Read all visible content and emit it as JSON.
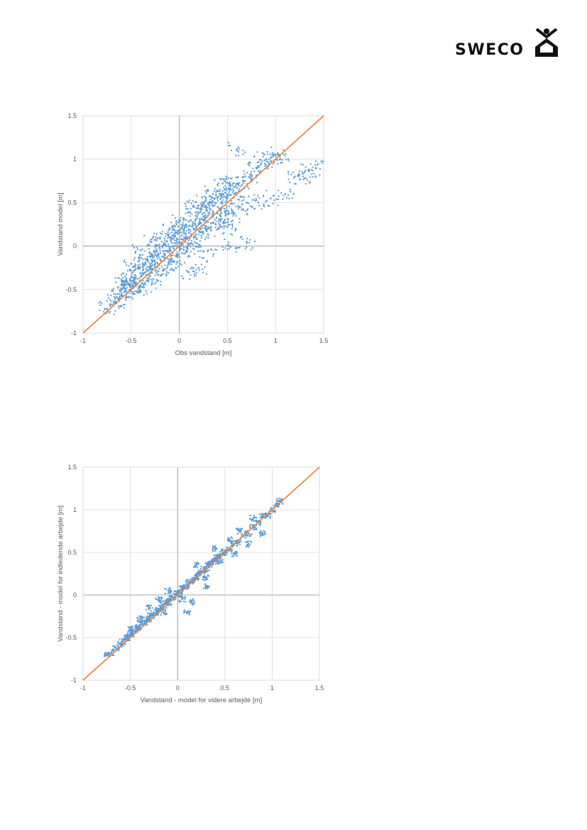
{
  "logo": {
    "text": "SWECO",
    "icon": "sweco-figure-icon"
  },
  "colors": {
    "points": "#5b9bd5",
    "line": "#ed7d31",
    "grid": "#d9d9d9",
    "zero": "#a6a6a6"
  },
  "chart_data": [
    {
      "type": "scatter",
      "xlabel": "Obs vandstand [m]",
      "ylabel": "Vandstand model [m]",
      "xlim": [
        -1,
        1.5
      ],
      "ylim": [
        -1,
        1.5
      ],
      "xticks": [
        "-1",
        "-0.5",
        "0",
        "0.5",
        "1",
        "1.5"
      ],
      "yticks": [
        "-1",
        "-0.5",
        "0",
        "0.5",
        "1",
        "1.5"
      ],
      "grid": true,
      "reference_line": {
        "from": [
          -1,
          -1
        ],
        "to": [
          1.5,
          1.5
        ]
      },
      "points": [
        [
          -0.75,
          -0.72
        ],
        [
          -0.7,
          -0.67
        ],
        [
          -0.66,
          -0.64
        ],
        [
          -0.62,
          -0.6
        ],
        [
          -0.6,
          -0.55
        ],
        [
          -0.58,
          -0.48
        ],
        [
          -0.55,
          -0.52
        ],
        [
          -0.55,
          -0.4
        ],
        [
          -0.52,
          -0.45
        ],
        [
          -0.5,
          -0.5
        ],
        [
          -0.5,
          -0.36
        ],
        [
          -0.48,
          -0.3
        ],
        [
          -0.47,
          -0.55
        ],
        [
          -0.45,
          -0.42
        ],
        [
          -0.43,
          -0.25
        ],
        [
          -0.42,
          -0.48
        ],
        [
          -0.4,
          -0.35
        ],
        [
          -0.38,
          -0.2
        ],
        [
          -0.37,
          -0.45
        ],
        [
          -0.35,
          -0.3
        ],
        [
          -0.33,
          -0.15
        ],
        [
          -0.32,
          -0.4
        ],
        [
          -0.3,
          -0.25
        ],
        [
          -0.28,
          -0.1
        ],
        [
          -0.27,
          -0.38
        ],
        [
          -0.25,
          -0.2
        ],
        [
          -0.23,
          -0.05
        ],
        [
          -0.22,
          -0.33
        ],
        [
          -0.2,
          -0.15
        ],
        [
          -0.18,
          0.0
        ],
        [
          -0.17,
          -0.28
        ],
        [
          -0.15,
          -0.1
        ],
        [
          -0.13,
          0.05
        ],
        [
          -0.12,
          -0.22
        ],
        [
          -0.1,
          -0.05
        ],
        [
          -0.08,
          0.1
        ],
        [
          -0.07,
          -0.18
        ],
        [
          -0.05,
          0.0
        ],
        [
          -0.03,
          0.15
        ],
        [
          -0.02,
          -0.12
        ],
        [
          0.0,
          0.05
        ],
        [
          0.02,
          0.2
        ],
        [
          0.03,
          -0.08
        ],
        [
          0.05,
          0.1
        ],
        [
          0.07,
          0.25
        ],
        [
          0.08,
          -0.02
        ],
        [
          0.1,
          0.15
        ],
        [
          0.12,
          0.3
        ],
        [
          0.13,
          0.03
        ],
        [
          0.15,
          0.2
        ],
        [
          0.17,
          0.35
        ],
        [
          0.18,
          0.08
        ],
        [
          0.2,
          0.25
        ],
        [
          0.22,
          0.4
        ],
        [
          0.23,
          0.12
        ],
        [
          0.25,
          0.3
        ],
        [
          0.27,
          0.45
        ],
        [
          0.28,
          0.18
        ],
        [
          0.3,
          0.35
        ],
        [
          0.32,
          0.5
        ],
        [
          0.33,
          0.22
        ],
        [
          0.35,
          0.4
        ],
        [
          0.37,
          0.55
        ],
        [
          0.38,
          0.25
        ],
        [
          0.4,
          0.45
        ],
        [
          0.42,
          0.6
        ],
        [
          0.43,
          0.3
        ],
        [
          0.45,
          0.5
        ],
        [
          0.47,
          0.65
        ],
        [
          0.48,
          0.35
        ],
        [
          0.5,
          0.55
        ],
        [
          0.52,
          0.7
        ],
        [
          0.55,
          0.4
        ],
        [
          0.57,
          0.6
        ],
        [
          0.6,
          0.72
        ],
        [
          0.62,
          0.45
        ],
        [
          0.65,
          0.65
        ],
        [
          0.68,
          0.75
        ],
        [
          0.7,
          0.5
        ],
        [
          0.75,
          0.8
        ],
        [
          0.6,
          1.1
        ],
        [
          0.8,
          0.9
        ],
        [
          0.85,
          0.95
        ],
        [
          0.9,
          1.0
        ],
        [
          0.95,
          0.98
        ],
        [
          1.0,
          1.05
        ],
        [
          1.05,
          1.0
        ],
        [
          0.82,
          0.5
        ],
        [
          0.95,
          0.55
        ],
        [
          1.1,
          0.6
        ],
        [
          1.2,
          0.8
        ],
        [
          1.3,
          0.78
        ],
        [
          1.35,
          0.88
        ],
        [
          1.42,
          0.9
        ],
        [
          0.5,
          0.22
        ],
        [
          0.55,
          0.25
        ],
        [
          0.7,
          0.05
        ],
        [
          0.52,
          0.0
        ],
        [
          0.3,
          -0.05
        ],
        [
          0.2,
          -0.25
        ],
        [
          0.1,
          -0.3
        ],
        [
          -0.2,
          0.1
        ],
        [
          -0.3,
          0.05
        ],
        [
          -0.4,
          -0.05
        ],
        [
          -0.5,
          -0.2
        ],
        [
          -0.6,
          -0.4
        ],
        [
          -0.1,
          0.2
        ],
        [
          0.0,
          0.3
        ],
        [
          0.15,
          0.45
        ],
        [
          0.35,
          0.6
        ],
        [
          0.45,
          0.72
        ],
        [
          0.25,
          0.5
        ]
      ]
    },
    {
      "type": "scatter",
      "xlabel": "Vandstand - model for videre arbejde [m]",
      "ylabel": "Vandstand - model for indledende arbejde [m]",
      "xlim": [
        -1,
        1.5
      ],
      "ylim": [
        -1,
        1.5
      ],
      "xticks": [
        "-1",
        "-0.5",
        "0",
        "0.5",
        "1",
        "1.5"
      ],
      "yticks": [
        "-1",
        "-0.5",
        "0",
        "0.5",
        "1",
        "1.5"
      ],
      "grid": true,
      "reference_line": {
        "from": [
          -1,
          -1
        ],
        "to": [
          1.5,
          1.5
        ]
      },
      "points": [
        [
          -0.75,
          -0.7
        ],
        [
          -0.7,
          -0.68
        ],
        [
          -0.65,
          -0.62
        ],
        [
          -0.6,
          -0.58
        ],
        [
          -0.58,
          -0.55
        ],
        [
          -0.55,
          -0.5
        ],
        [
          -0.52,
          -0.5
        ],
        [
          -0.5,
          -0.46
        ],
        [
          -0.48,
          -0.45
        ],
        [
          -0.45,
          -0.42
        ],
        [
          -0.42,
          -0.38
        ],
        [
          -0.4,
          -0.38
        ],
        [
          -0.38,
          -0.33
        ],
        [
          -0.35,
          -0.33
        ],
        [
          -0.33,
          -0.28
        ],
        [
          -0.3,
          -0.28
        ],
        [
          -0.28,
          -0.24
        ],
        [
          -0.25,
          -0.22
        ],
        [
          -0.22,
          -0.2
        ],
        [
          -0.2,
          -0.16
        ],
        [
          -0.18,
          -0.15
        ],
        [
          -0.15,
          -0.12
        ],
        [
          -0.12,
          -0.08
        ],
        [
          -0.1,
          -0.09
        ],
        [
          -0.08,
          -0.04
        ],
        [
          -0.05,
          -0.03
        ],
        [
          -0.02,
          0.01
        ],
        [
          0.0,
          0.02
        ],
        [
          0.02,
          0.04
        ],
        [
          0.05,
          0.07
        ],
        [
          0.08,
          0.1
        ],
        [
          0.1,
          0.11
        ],
        [
          0.12,
          0.15
        ],
        [
          0.15,
          0.16
        ],
        [
          0.18,
          0.2
        ],
        [
          0.2,
          0.21
        ],
        [
          0.22,
          0.25
        ],
        [
          0.25,
          0.26
        ],
        [
          0.28,
          0.3
        ],
        [
          0.3,
          0.31
        ],
        [
          0.32,
          0.35
        ],
        [
          0.35,
          0.36
        ],
        [
          0.38,
          0.4
        ],
        [
          0.4,
          0.41
        ],
        [
          0.42,
          0.45
        ],
        [
          0.45,
          0.46
        ],
        [
          0.48,
          0.5
        ],
        [
          0.5,
          0.51
        ],
        [
          0.55,
          0.55
        ],
        [
          0.6,
          0.6
        ],
        [
          0.65,
          0.62
        ],
        [
          0.7,
          0.7
        ],
        [
          0.75,
          0.72
        ],
        [
          0.8,
          0.8
        ],
        [
          0.85,
          0.85
        ],
        [
          0.9,
          0.92
        ],
        [
          0.95,
          0.93
        ],
        [
          1.0,
          1.0
        ],
        [
          1.05,
          1.05
        ],
        [
          1.08,
          1.1
        ],
        [
          0.9,
          0.72
        ],
        [
          0.75,
          0.6
        ],
        [
          0.6,
          0.48
        ],
        [
          0.45,
          0.38
        ],
        [
          0.3,
          0.2
        ],
        [
          0.1,
          -0.2
        ],
        [
          0.15,
          -0.08
        ],
        [
          0.3,
          0.1
        ],
        [
          -0.2,
          -0.05
        ],
        [
          -0.3,
          -0.15
        ],
        [
          -0.4,
          -0.28
        ],
        [
          0.2,
          0.35
        ],
        [
          0.4,
          0.55
        ],
        [
          0.55,
          0.65
        ],
        [
          -0.1,
          0.05
        ],
        [
          -0.5,
          -0.4
        ],
        [
          0.65,
          0.75
        ],
        [
          0.8,
          0.9
        ],
        [
          0.05,
          -0.05
        ],
        [
          -0.15,
          -0.2
        ]
      ]
    }
  ]
}
